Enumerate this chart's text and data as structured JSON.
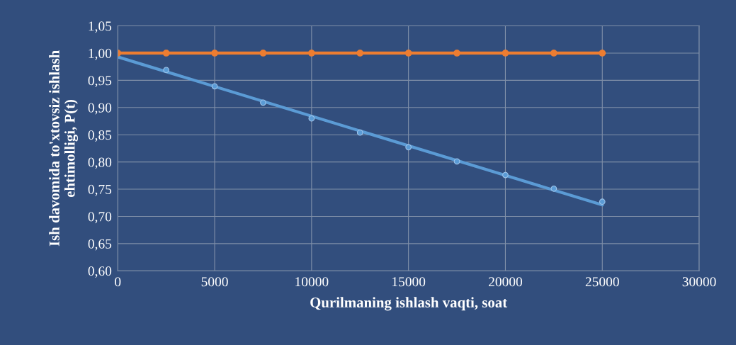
{
  "chart_data": {
    "type": "line",
    "xlabel": "Qurilmaning ishlash vaqti, soat",
    "ylabel": "Ish davomida to'xtovsiz ishlash\nehtimolligi, P(t)",
    "x": [
      0,
      2500,
      5000,
      7500,
      10000,
      12500,
      15000,
      17500,
      20000,
      22500,
      25000
    ],
    "series": [
      {
        "type": "line",
        "x": [
          0,
          25000
        ],
        "values": [
          0.993,
          0.721
        ],
        "color": "#5b9bd5",
        "marker": "none"
      },
      {
        "type": "scatter",
        "values": [
          null,
          0.969,
          0.939,
          0.909,
          0.88,
          0.854,
          0.827,
          0.801,
          0.776,
          0.751,
          0.727
        ],
        "color": "#5b9bd5"
      },
      {
        "values": [
          1.0,
          1.0,
          1.0,
          1.0,
          1.0,
          1.0,
          1.0,
          1.0,
          1.0,
          1.0,
          1.0
        ],
        "color": "#ed7d31",
        "marker": "circle"
      }
    ],
    "xlim": [
      0,
      30000
    ],
    "xticks": [
      0,
      5000,
      10000,
      15000,
      20000,
      25000,
      30000
    ],
    "ylim": [
      0.6,
      1.05
    ],
    "yticks": [
      {
        "value": 0.6,
        "label": "0,60"
      },
      {
        "value": 0.65,
        "label": "0,65"
      },
      {
        "value": 0.7,
        "label": "0,70"
      },
      {
        "value": 0.75,
        "label": "0,75"
      },
      {
        "value": 0.8,
        "label": "0,80"
      },
      {
        "value": 0.85,
        "label": "0,85"
      },
      {
        "value": 0.9,
        "label": "0,90"
      },
      {
        "value": 0.95,
        "label": "0,95"
      },
      {
        "value": 1.0,
        "label": "1,00"
      },
      {
        "value": 1.05,
        "label": "1,05"
      }
    ],
    "grid": true,
    "marker": "circle"
  }
}
